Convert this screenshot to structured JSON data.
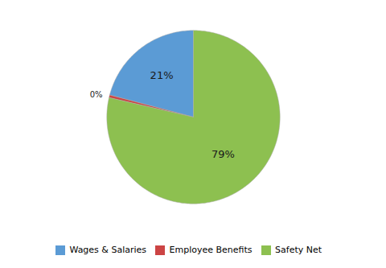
{
  "chart_data": {
    "type": "pie",
    "categories": [
      "Wages & Salaries",
      "Employee Benefits",
      "Safety Net"
    ],
    "values": [
      21,
      0.5,
      79
    ],
    "value_labels": [
      "21%",
      "0%",
      "79%"
    ],
    "colors": [
      "#5B9BD5",
      "#CC4444",
      "#8DC050"
    ],
    "data_labels": true,
    "legend": "bottom"
  }
}
